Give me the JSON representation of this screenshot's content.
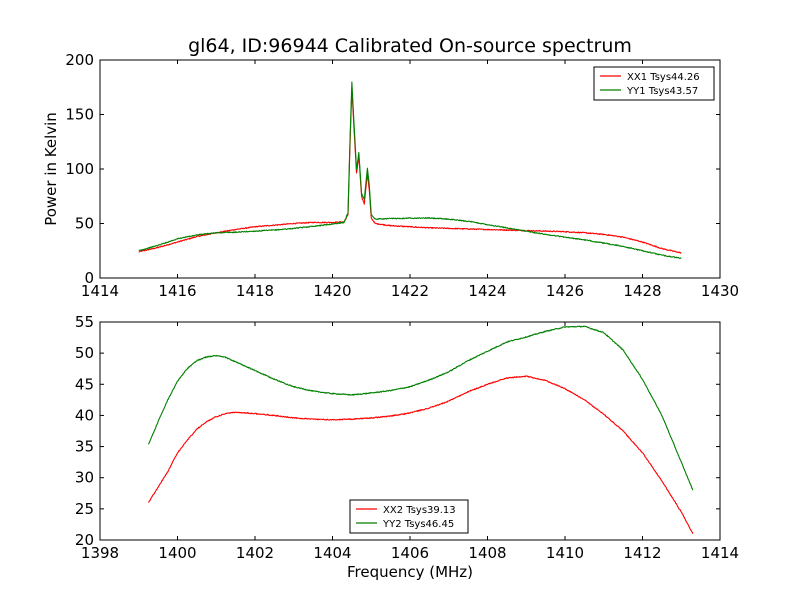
{
  "chart_data": [
    {
      "type": "line",
      "title": "gl64, ID:96944 Calibrated On-source spectrum",
      "xlabel": "",
      "ylabel": "Power in Kelvin",
      "xlim": [
        1414,
        1430
      ],
      "ylim": [
        0,
        200
      ],
      "xticks": [
        1414,
        1416,
        1418,
        1420,
        1422,
        1424,
        1426,
        1428,
        1430
      ],
      "yticks": [
        0,
        50,
        100,
        150,
        200
      ],
      "grid": false,
      "legend_position": "top-right",
      "series": [
        {
          "name": "XX1 Tsys44.26",
          "color": "#ff0000",
          "points": [
            [
              1415.0,
              24
            ],
            [
              1415.5,
              28
            ],
            [
              1416.0,
              33
            ],
            [
              1416.5,
              38
            ],
            [
              1417.0,
              41.5
            ],
            [
              1417.5,
              44.5
            ],
            [
              1418.0,
              47
            ],
            [
              1418.5,
              48.5
            ],
            [
              1419.0,
              50
            ],
            [
              1419.5,
              51
            ],
            [
              1420.0,
              51
            ],
            [
              1420.3,
              51.5
            ],
            [
              1420.4,
              58
            ],
            [
              1420.45,
              120
            ],
            [
              1420.5,
              174
            ],
            [
              1420.55,
              140
            ],
            [
              1420.62,
              96
            ],
            [
              1420.68,
              112
            ],
            [
              1420.75,
              75
            ],
            [
              1420.82,
              68
            ],
            [
              1420.9,
              96
            ],
            [
              1420.95,
              80
            ],
            [
              1421.0,
              55
            ],
            [
              1421.1,
              50
            ],
            [
              1421.5,
              48
            ],
            [
              1422.0,
              47
            ],
            [
              1422.5,
              46
            ],
            [
              1423.0,
              45.5
            ],
            [
              1423.5,
              45
            ],
            [
              1424.0,
              44.5
            ],
            [
              1424.5,
              44
            ],
            [
              1425.0,
              43.5
            ],
            [
              1425.5,
              43
            ],
            [
              1426.0,
              42.5
            ],
            [
              1426.5,
              41.5
            ],
            [
              1427.0,
              40
            ],
            [
              1427.5,
              37.5
            ],
            [
              1428.0,
              33
            ],
            [
              1428.5,
              27
            ],
            [
              1429.0,
              23
            ]
          ]
        },
        {
          "name": "YY1 Tsys43.57",
          "color": "#008000",
          "points": [
            [
              1415.0,
              25
            ],
            [
              1415.5,
              30
            ],
            [
              1416.0,
              36
            ],
            [
              1416.5,
              39.5
            ],
            [
              1417.0,
              41.5
            ],
            [
              1417.5,
              42
            ],
            [
              1418.0,
              43
            ],
            [
              1418.5,
              44
            ],
            [
              1419.0,
              45.5
            ],
            [
              1419.5,
              47.5
            ],
            [
              1420.0,
              49.5
            ],
            [
              1420.3,
              51
            ],
            [
              1420.4,
              60
            ],
            [
              1420.45,
              125
            ],
            [
              1420.5,
              180
            ],
            [
              1420.55,
              145
            ],
            [
              1420.62,
              100
            ],
            [
              1420.68,
              115
            ],
            [
              1420.75,
              78
            ],
            [
              1420.82,
              72
            ],
            [
              1420.9,
              101
            ],
            [
              1420.95,
              85
            ],
            [
              1421.0,
              58
            ],
            [
              1421.1,
              54
            ],
            [
              1421.5,
              54.5
            ],
            [
              1422.0,
              55
            ],
            [
              1422.5,
              55
            ],
            [
              1423.0,
              54
            ],
            [
              1423.5,
              52
            ],
            [
              1424.0,
              49
            ],
            [
              1424.5,
              46
            ],
            [
              1425.0,
              43
            ],
            [
              1425.5,
              40
            ],
            [
              1426.0,
              37.5
            ],
            [
              1426.5,
              35
            ],
            [
              1427.0,
              32
            ],
            [
              1427.5,
              29
            ],
            [
              1428.0,
              25
            ],
            [
              1428.5,
              21
            ],
            [
              1429.0,
              18
            ]
          ]
        }
      ]
    },
    {
      "type": "line",
      "title": "",
      "xlabel": "Frequency (MHz)",
      "ylabel": "",
      "xlim": [
        1398,
        1414
      ],
      "ylim": [
        20,
        55
      ],
      "xticks": [
        1398,
        1400,
        1402,
        1404,
        1406,
        1408,
        1410,
        1412,
        1414
      ],
      "yticks": [
        20,
        25,
        30,
        35,
        40,
        45,
        50,
        55
      ],
      "grid": false,
      "legend_position": "bottom-center",
      "series": [
        {
          "name": "XX2 Tsys39.13",
          "color": "#ff0000",
          "points": [
            [
              1399.25,
              26
            ],
            [
              1399.5,
              28.5
            ],
            [
              1399.75,
              31
            ],
            [
              1400.0,
              34
            ],
            [
              1400.25,
              36
            ],
            [
              1400.5,
              37.8
            ],
            [
              1400.75,
              39
            ],
            [
              1401.0,
              39.8
            ],
            [
              1401.25,
              40.3
            ],
            [
              1401.5,
              40.5
            ],
            [
              1402.0,
              40.3
            ],
            [
              1402.5,
              40
            ],
            [
              1403.0,
              39.6
            ],
            [
              1403.5,
              39.4
            ],
            [
              1404.0,
              39.3
            ],
            [
              1404.5,
              39.4
            ],
            [
              1405.0,
              39.6
            ],
            [
              1405.5,
              39.9
            ],
            [
              1406.0,
              40.4
            ],
            [
              1406.5,
              41.2
            ],
            [
              1407.0,
              42.3
            ],
            [
              1407.5,
              43.8
            ],
            [
              1408.0,
              45
            ],
            [
              1408.5,
              46
            ],
            [
              1409.0,
              46.3
            ],
            [
              1409.5,
              45.6
            ],
            [
              1410.0,
              44.3
            ],
            [
              1410.5,
              42.5
            ],
            [
              1411.0,
              40.2
            ],
            [
              1411.5,
              37.5
            ],
            [
              1412.0,
              34
            ],
            [
              1412.5,
              29.5
            ],
            [
              1413.0,
              24.5
            ],
            [
              1413.3,
              21
            ]
          ]
        },
        {
          "name": "YY2 Tsys46.45",
          "color": "#008000",
          "points": [
            [
              1399.25,
              35.3
            ],
            [
              1399.5,
              39
            ],
            [
              1399.75,
              42.5
            ],
            [
              1400.0,
              45.5
            ],
            [
              1400.25,
              47.5
            ],
            [
              1400.5,
              48.8
            ],
            [
              1400.75,
              49.4
            ],
            [
              1401.0,
              49.6
            ],
            [
              1401.25,
              49.3
            ],
            [
              1401.5,
              48.6
            ],
            [
              1402.0,
              47.2
            ],
            [
              1402.5,
              45.8
            ],
            [
              1403.0,
              44.6
            ],
            [
              1403.5,
              43.9
            ],
            [
              1404.0,
              43.5
            ],
            [
              1404.5,
              43.3
            ],
            [
              1405.0,
              43.6
            ],
            [
              1405.5,
              44
            ],
            [
              1406.0,
              44.6
            ],
            [
              1406.5,
              45.7
            ],
            [
              1407.0,
              47
            ],
            [
              1407.5,
              48.8
            ],
            [
              1408.0,
              50.3
            ],
            [
              1408.5,
              51.8
            ],
            [
              1409.0,
              52.6
            ],
            [
              1409.5,
              53.5
            ],
            [
              1410.0,
              54.2
            ],
            [
              1410.5,
              54.3
            ],
            [
              1411.0,
              53.3
            ],
            [
              1411.5,
              50.5
            ],
            [
              1412.0,
              45.8
            ],
            [
              1412.5,
              40
            ],
            [
              1413.0,
              32.5
            ],
            [
              1413.3,
              28
            ]
          ]
        }
      ]
    }
  ]
}
